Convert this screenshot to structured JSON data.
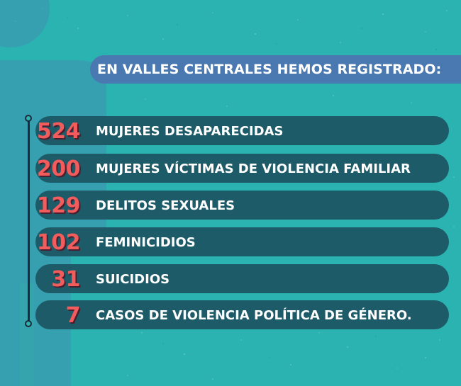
{
  "header": {
    "title": "EN VALLES CENTRALES HEMOS REGISTRADO:"
  },
  "stats": [
    {
      "number": "524",
      "label": "MUJERES DESAPARECIDAS"
    },
    {
      "number": "200",
      "label": "MUJERES VÍCTIMAS DE VIOLENCIA FAMILIAR"
    },
    {
      "number": "129",
      "label": "DELITOS SEXUALES"
    },
    {
      "number": "102",
      "label": "FEMINICIDIOS"
    },
    {
      "number": "31",
      "label": "SUICIDIOS"
    },
    {
      "number": "7",
      "label": "CASOS DE VIOLENCIA POLÍTICA DE GÉNERO."
    }
  ],
  "colors": {
    "background": "#2bb3b2",
    "header_bar": "#4a78b0",
    "row_bar": "#1d5b68",
    "number": "#f25c5c",
    "label": "#ffffff",
    "timeline": "#1c2a3c"
  }
}
